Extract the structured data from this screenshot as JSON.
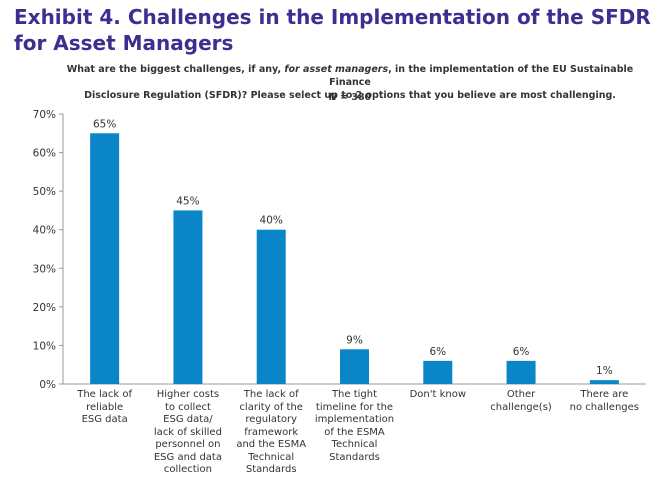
{
  "title_line1": "Exhibit 4. Challenges in the Implementation of the SFDR",
  "title_line2": "for Asset Managers",
  "question": {
    "part1": "What are the biggest challenges, if any, ",
    "italic": "for asset managers",
    "part2": ", in the implementation of the EU Sustainable Finance",
    "line2": "Disclosure Regulation (SFDR)? Please select up to 2 options that you believe are most challenging."
  },
  "sample": {
    "label": "N",
    "value": " = 380"
  },
  "chart_data": {
    "type": "bar",
    "categories": [
      "The lack of reliable ESG data",
      "Higher costs to collect ESG data/ lack of skilled personnel on ESG and data collection",
      "The lack of clarity of the regulatory framework and the ESMA Technical Standards",
      "The tight timeline for the implementation of the ESMA Technical Standards",
      "Don't know",
      "Other challenge(s)",
      "There are no challenges"
    ],
    "category_lines": [
      [
        "The lack of",
        "reliable",
        "ESG data"
      ],
      [
        "Higher costs",
        "to collect",
        "ESG data/",
        "lack of skilled",
        "personnel on",
        "ESG and data",
        "collection"
      ],
      [
        "The lack of",
        "clarity of the",
        "regulatory",
        "framework",
        "and the ESMA",
        "Technical",
        "Standards"
      ],
      [
        "The tight",
        "timeline for the",
        "implementation",
        "of the ESMA",
        "Technical",
        "Standards"
      ],
      [
        "Don't know"
      ],
      [
        "Other",
        "challenge(s)"
      ],
      [
        "There are",
        "no challenges"
      ]
    ],
    "values": [
      65,
      45,
      40,
      9,
      6,
      6,
      1
    ],
    "value_labels": [
      "65%",
      "45%",
      "40%",
      "9%",
      "6%",
      "6%",
      "1%"
    ],
    "ylim": [
      0,
      70
    ],
    "yticks": [
      "0%",
      "10%",
      "20%",
      "30%",
      "40%",
      "50%",
      "60%",
      "70%"
    ],
    "bar_color": "#0a86c8",
    "grid": false,
    "legend": "none"
  }
}
